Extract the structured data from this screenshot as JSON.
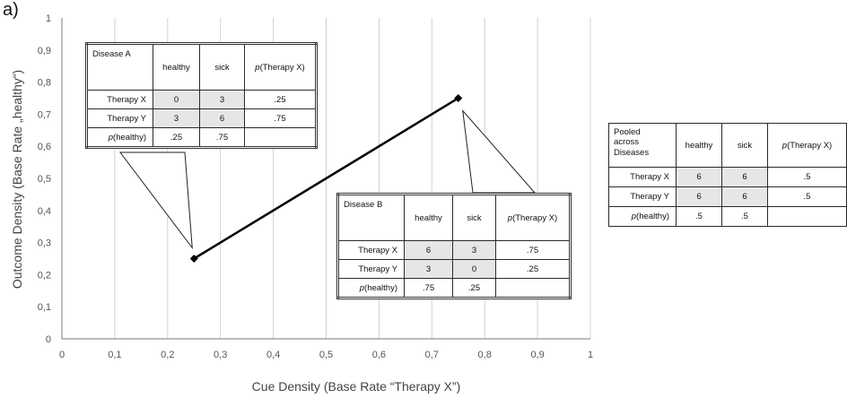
{
  "panel_label": "a)",
  "chart_data": {
    "type": "line",
    "xlabel": "Cue Density (Base Rate “Therapy X”)",
    "ylabel": "Outcome Density (Base Rate „healthy“)",
    "xlim": [
      0,
      1
    ],
    "ylim": [
      0,
      1
    ],
    "x_ticks": [
      "0",
      "0,1",
      "0,2",
      "0,3",
      "0,4",
      "0,5",
      "0,6",
      "0,7",
      "0,8",
      "0,9",
      "1"
    ],
    "y_ticks": [
      "0",
      "0,1",
      "0,2",
      "0,3",
      "0,4",
      "0,5",
      "0,6",
      "0,7",
      "0,8",
      "0,9",
      "1"
    ],
    "grid": "vertical",
    "series": [
      {
        "x": [
          0.25,
          0.75
        ],
        "y": [
          0.25,
          0.75
        ],
        "marker": "diamond",
        "color": "#000000"
      }
    ],
    "tables": {
      "disease_a": {
        "title": "Disease A",
        "columns": [
          "healthy",
          "sick",
          "p(Therapy X)"
        ],
        "rows": [
          {
            "label": "Therapy X",
            "values": [
              "0",
              "3",
              ".25"
            ]
          },
          {
            "label": "Therapy Y",
            "values": [
              "3",
              "6",
              ".75"
            ]
          },
          {
            "label": "p(healthy)",
            "values": [
              ".25",
              ".75",
              ""
            ]
          }
        ]
      },
      "disease_b": {
        "title": "Disease B",
        "columns": [
          "healthy",
          "sick",
          "p(Therapy X)"
        ],
        "rows": [
          {
            "label": "Therapy X",
            "values": [
              "6",
              "3",
              ".75"
            ]
          },
          {
            "label": "Therapy Y",
            "values": [
              "3",
              "0",
              ".25"
            ]
          },
          {
            "label": "p(healthy)",
            "values": [
              ".75",
              ".25",
              ""
            ]
          }
        ]
      },
      "pooled": {
        "title": "Pooled across Diseases",
        "columns": [
          "healthy",
          "sick",
          "p(Therapy X)"
        ],
        "rows": [
          {
            "label": "Therapy X",
            "values": [
              "6",
              "6",
              ".5"
            ]
          },
          {
            "label": "Therapy Y",
            "values": [
              "6",
              "6",
              ".5"
            ]
          },
          {
            "label": "p(healthy)",
            "values": [
              ".5",
              ".5",
              ""
            ]
          }
        ]
      }
    }
  }
}
